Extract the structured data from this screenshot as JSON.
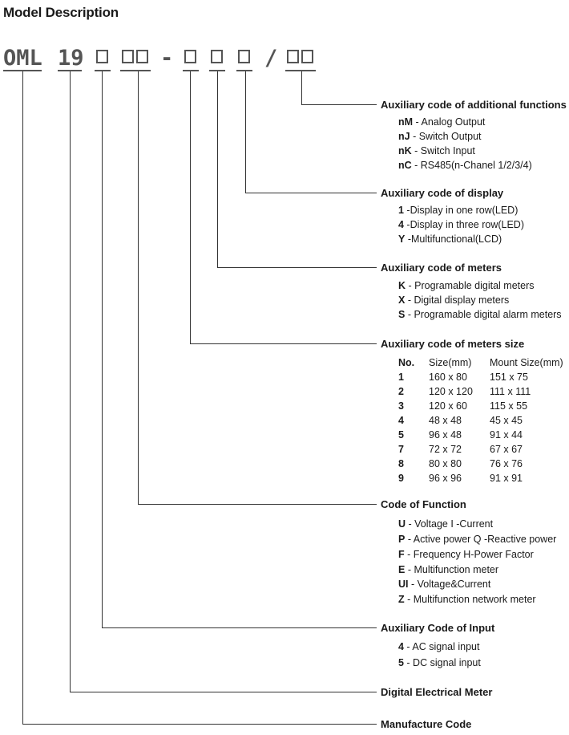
{
  "heading": "Model Description",
  "code": {
    "prefix": "OML",
    "series": "19",
    "dash": "-",
    "slash": "/"
  },
  "sections": {
    "additional": {
      "title": "Auxiliary code of additional functions",
      "items": [
        {
          "code": "nM",
          "text": " - Analog Output"
        },
        {
          "code": "nJ",
          "text": "  - Switch Output"
        },
        {
          "code": "nK",
          "text": " - Switch Input"
        },
        {
          "code": "nC",
          "text": "  - RS485(n-Chanel 1/2/3/4)"
        }
      ]
    },
    "display": {
      "title": "Auxiliary code of display",
      "items": [
        {
          "code": "1",
          "text": " -Display in one row(LED)"
        },
        {
          "code": "4",
          "text": " -Display in three row(LED)"
        },
        {
          "code": "Y",
          "text": " -Multifunctional(LCD)"
        }
      ]
    },
    "meters": {
      "title": "Auxiliary code of meters",
      "items": [
        {
          "code": "K",
          "text": " - Programable digital meters"
        },
        {
          "code": "X",
          "text": " - Digital display meters"
        },
        {
          "code": "S",
          "text": " - Programable digital alarm meters"
        }
      ]
    },
    "size": {
      "title": "Auxiliary code of meters size",
      "headers": {
        "no": "No.",
        "size": "Size(mm)",
        "mount": "Mount Size(mm)"
      },
      "rows": [
        {
          "no": "1",
          "size": "160 x 80",
          "mount": "151 x 75"
        },
        {
          "no": "2",
          "size": "120 x 120",
          "mount": "111 x 111"
        },
        {
          "no": "3",
          "size": "120 x 60",
          "mount": "115 x 55"
        },
        {
          "no": "4",
          "size": "48 x 48",
          "mount": "45 x 45"
        },
        {
          "no": "5",
          "size": "96 x 48",
          "mount": "91 x 44"
        },
        {
          "no": "7",
          "size": "72 x 72",
          "mount": "67 x 67"
        },
        {
          "no": "8",
          "size": "80 x 80",
          "mount": "76 x 76"
        },
        {
          "no": "9",
          "size": "96 x 96",
          "mount": "91 x 91"
        }
      ]
    },
    "function": {
      "title": "Code of Function",
      "items": [
        {
          "code": "U",
          "text": "  - Voltage I -Current"
        },
        {
          "code": "P",
          "text": "  - Active power Q -Reactive power"
        },
        {
          "code": "F",
          "text": "  - Frequency H-Power Factor"
        },
        {
          "code": "E",
          "text": "  - Multifunction meter"
        },
        {
          "code": "UI",
          "text": " - Voltage&Current"
        },
        {
          "code": "Z",
          "text": "  - Multifunction network meter"
        }
      ]
    },
    "input": {
      "title": "Auxiliary Code of Input",
      "items": [
        {
          "code": "4",
          "text": " - AC signal input"
        },
        {
          "code": "5",
          "text": " - DC signal input"
        }
      ]
    },
    "meter": {
      "title": "Digital Electrical Meter"
    },
    "manufacture": {
      "title": "Manufacture Code"
    }
  }
}
